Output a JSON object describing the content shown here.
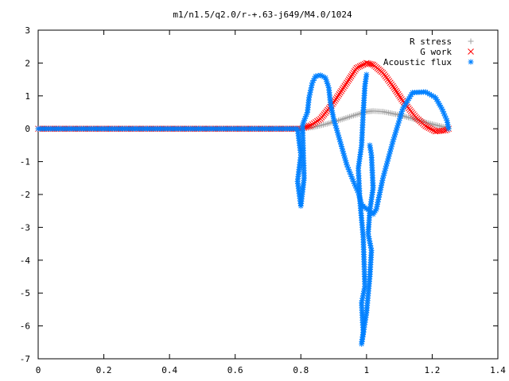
{
  "chart_data": {
    "type": "scatter",
    "title": "m1/n1.5/q2.0/r-+.63-j649/M4.0/1024",
    "xlabel": "",
    "ylabel": "",
    "xlim": [
      0,
      1.4
    ],
    "ylim": [
      -7,
      3
    ],
    "x_ticks": [
      "0",
      "0.2",
      "0.4",
      "0.6",
      "0.8",
      "1",
      "1.2",
      "1.4"
    ],
    "y_ticks": [
      "3",
      "2",
      "1",
      "0",
      "-1",
      "-2",
      "-3",
      "-4",
      "-5",
      "-6",
      "-7"
    ],
    "grid": false,
    "legend_position": "top-right",
    "series": [
      {
        "name": "R stress",
        "marker": "plus",
        "color": "#a0a0a0",
        "points": [
          [
            0.0,
            0.0
          ],
          [
            0.79,
            0.0
          ],
          [
            0.8,
            0.0
          ],
          [
            0.84,
            0.05
          ],
          [
            0.88,
            0.15
          ],
          [
            0.92,
            0.27
          ],
          [
            0.96,
            0.4
          ],
          [
            1.0,
            0.52
          ],
          [
            1.02,
            0.54
          ],
          [
            1.05,
            0.52
          ],
          [
            1.1,
            0.42
          ],
          [
            1.15,
            0.28
          ],
          [
            1.2,
            0.14
          ],
          [
            1.25,
            0.02
          ]
        ]
      },
      {
        "name": "G work",
        "marker": "cross",
        "color": "#ff0000",
        "points": [
          [
            0.0,
            0.0
          ],
          [
            0.79,
            0.0
          ],
          [
            0.8,
            0.0
          ],
          [
            0.83,
            0.1
          ],
          [
            0.86,
            0.3
          ],
          [
            0.9,
            0.8
          ],
          [
            0.94,
            1.4
          ],
          [
            0.97,
            1.85
          ],
          [
            1.0,
            2.0
          ],
          [
            1.02,
            1.95
          ],
          [
            1.05,
            1.7
          ],
          [
            1.08,
            1.3
          ],
          [
            1.11,
            0.85
          ],
          [
            1.15,
            0.35
          ],
          [
            1.18,
            0.08
          ],
          [
            1.21,
            -0.08
          ],
          [
            1.24,
            -0.05
          ],
          [
            1.25,
            0.0
          ]
        ]
      },
      {
        "name": "Acoustic flux",
        "marker": "star",
        "color": "#0080ff",
        "points": [
          [
            0.0,
            0.0
          ],
          [
            0.79,
            0.0
          ],
          [
            0.8,
            -0.8
          ],
          [
            0.79,
            -1.6
          ],
          [
            0.8,
            -2.35
          ],
          [
            0.81,
            -1.5
          ],
          [
            0.805,
            0.1
          ],
          [
            0.81,
            0.25
          ],
          [
            0.82,
            0.5
          ],
          [
            0.825,
            0.95
          ],
          [
            0.835,
            1.4
          ],
          [
            0.845,
            1.6
          ],
          [
            0.86,
            1.63
          ],
          [
            0.875,
            1.55
          ],
          [
            0.885,
            1.25
          ],
          [
            0.89,
            0.8
          ],
          [
            0.895,
            0.55
          ],
          [
            0.9,
            0.3
          ],
          [
            0.92,
            -0.4
          ],
          [
            0.94,
            -1.1
          ],
          [
            0.96,
            -1.6
          ],
          [
            0.975,
            -1.95
          ],
          [
            0.985,
            -2.3
          ],
          [
            0.995,
            -2.4
          ],
          [
            1.01,
            -2.5
          ],
          [
            1.02,
            -2.6
          ],
          [
            1.03,
            -2.45
          ],
          [
            1.05,
            -1.5
          ],
          [
            1.08,
            -0.4
          ],
          [
            1.11,
            0.6
          ],
          [
            1.14,
            1.1
          ],
          [
            1.18,
            1.12
          ],
          [
            1.21,
            0.95
          ],
          [
            1.23,
            0.6
          ],
          [
            1.245,
            0.25
          ],
          [
            1.25,
            0.0
          ],
          [
            1.0,
            1.65
          ],
          [
            0.995,
            1.3
          ],
          [
            0.99,
            0.5
          ],
          [
            0.985,
            -0.5
          ],
          [
            0.975,
            -1.2
          ],
          [
            0.98,
            -2.2
          ],
          [
            0.99,
            -3.3
          ],
          [
            0.995,
            -4.8
          ],
          [
            0.985,
            -5.3
          ],
          [
            0.99,
            -6.2
          ],
          [
            0.985,
            -6.55
          ],
          [
            1.0,
            -5.6
          ],
          [
            1.01,
            -4.5
          ],
          [
            1.015,
            -3.7
          ],
          [
            1.005,
            -3.2
          ],
          [
            1.01,
            -2.5
          ],
          [
            1.02,
            -1.8
          ],
          [
            1.015,
            -0.8
          ],
          [
            1.01,
            -0.5
          ]
        ]
      }
    ]
  }
}
